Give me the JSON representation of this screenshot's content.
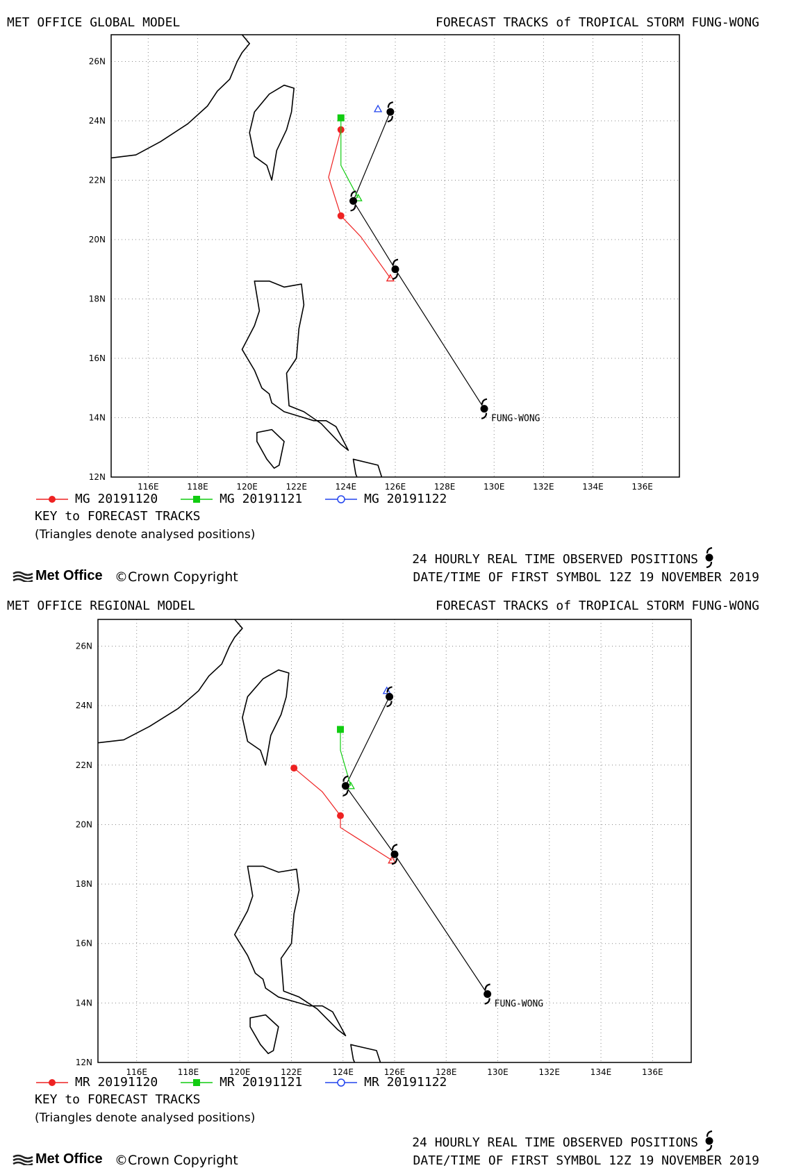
{
  "panels": [
    {
      "model_title": "MET OFFICE GLOBAL MODEL",
      "forecast_title": "FORECAST TRACKS of TROPICAL STORM FUNG-WONG",
      "legend": [
        {
          "label": "MG 20191120",
          "color": "#ee2222",
          "marker": "circle"
        },
        {
          "label": "MG 20191121",
          "color": "#11cc11",
          "marker": "square"
        },
        {
          "label": "MG 20191122",
          "color": "#2244ee",
          "marker": "open-circle"
        }
      ],
      "key_text": "KEY to FORECAST TRACKS",
      "triangles_note": "(Triangles denote analysed positions)",
      "observed_text": "24 HOURLY REAL TIME OBSERVED POSITIONS",
      "first_symbol_text": "DATE/TIME OF FIRST SYMBOL 12Z 19 NOVEMBER 2019",
      "brand": "Met Office",
      "copyright": "©Crown Copyright",
      "storm_label": "FUNG-WONG"
    },
    {
      "model_title": "MET OFFICE REGIONAL MODEL",
      "forecast_title": "FORECAST TRACKS of TROPICAL STORM FUNG-WONG",
      "legend": [
        {
          "label": "MR 20191120",
          "color": "#ee2222",
          "marker": "circle"
        },
        {
          "label": "MR 20191121",
          "color": "#11cc11",
          "marker": "square"
        },
        {
          "label": "MR 20191122",
          "color": "#2244ee",
          "marker": "open-circle"
        }
      ],
      "key_text": "KEY to FORECAST TRACKS",
      "triangles_note": "(Triangles denote analysed positions)",
      "observed_text": "24 HOURLY REAL TIME OBSERVED POSITIONS",
      "first_symbol_text": "DATE/TIME OF FIRST SYMBOL 12Z 19 NOVEMBER 2019",
      "brand": "Met Office",
      "copyright": "©Crown Copyright",
      "storm_label": "FUNG-WONG"
    }
  ],
  "chart_data": [
    {
      "type": "line",
      "title": "FORECAST TRACKS of TROPICAL STORM FUNG-WONG",
      "xlabel": "",
      "ylabel": "",
      "xlim": [
        114.5,
        137.5
      ],
      "ylim": [
        12,
        26.9
      ],
      "x_ticks": [
        "116E",
        "118E",
        "120E",
        "122E",
        "124E",
        "126E",
        "128E",
        "130E",
        "132E",
        "134E",
        "136E"
      ],
      "y_ticks": [
        "12N",
        "14N",
        "16N",
        "18N",
        "20N",
        "22N",
        "24N",
        "26N"
      ],
      "grid": true,
      "legend_position": "bottom",
      "observed": {
        "lon": [
          129.6,
          126.0,
          124.3,
          125.8
        ],
        "lat": [
          14.3,
          19.0,
          21.3,
          24.3
        ]
      },
      "series": [
        {
          "name": "MG 20191120",
          "color": "#ee2222",
          "lon": [
            125.8,
            124.6,
            123.8,
            123.3,
            123.8
          ],
          "lat": [
            18.7,
            20.1,
            20.8,
            22.1,
            23.7
          ]
        },
        {
          "name": "MG 20191121",
          "color": "#11cc11",
          "lon": [
            124.5,
            123.8,
            123.8
          ],
          "lat": [
            21.4,
            22.5,
            24.1
          ]
        },
        {
          "name": "MG 20191122",
          "color": "#2244ee",
          "lon": [
            125.3
          ],
          "lat": [
            24.4
          ]
        }
      ]
    },
    {
      "type": "line",
      "title": "FORECAST TRACKS of TROPICAL STORM FUNG-WONG",
      "xlabel": "",
      "ylabel": "",
      "xlim": [
        114.5,
        137.5
      ],
      "ylim": [
        12,
        26.9
      ],
      "x_ticks": [
        "116E",
        "118E",
        "120E",
        "122E",
        "124E",
        "126E",
        "128E",
        "130E",
        "132E",
        "134E",
        "136E"
      ],
      "y_ticks": [
        "12N",
        "14N",
        "16N",
        "18N",
        "20N",
        "22N",
        "24N",
        "26N"
      ],
      "grid": true,
      "legend_position": "bottom",
      "observed": {
        "lon": [
          129.6,
          126.0,
          124.1,
          125.8
        ],
        "lat": [
          14.3,
          19.0,
          21.3,
          24.3
        ]
      },
      "series": [
        {
          "name": "MR 20191120",
          "color": "#ee2222",
          "lon": [
            125.9,
            123.9,
            123.9,
            123.2,
            122.1
          ],
          "lat": [
            18.8,
            19.9,
            20.3,
            21.1,
            21.9
          ]
        },
        {
          "name": "MR 20191121",
          "color": "#11cc11",
          "lon": [
            124.3,
            123.9,
            123.9
          ],
          "lat": [
            21.3,
            22.5,
            23.2
          ]
        },
        {
          "name": "MR 20191122",
          "color": "#2244ee",
          "lon": [
            125.7
          ],
          "lat": [
            24.5
          ]
        }
      ]
    }
  ]
}
